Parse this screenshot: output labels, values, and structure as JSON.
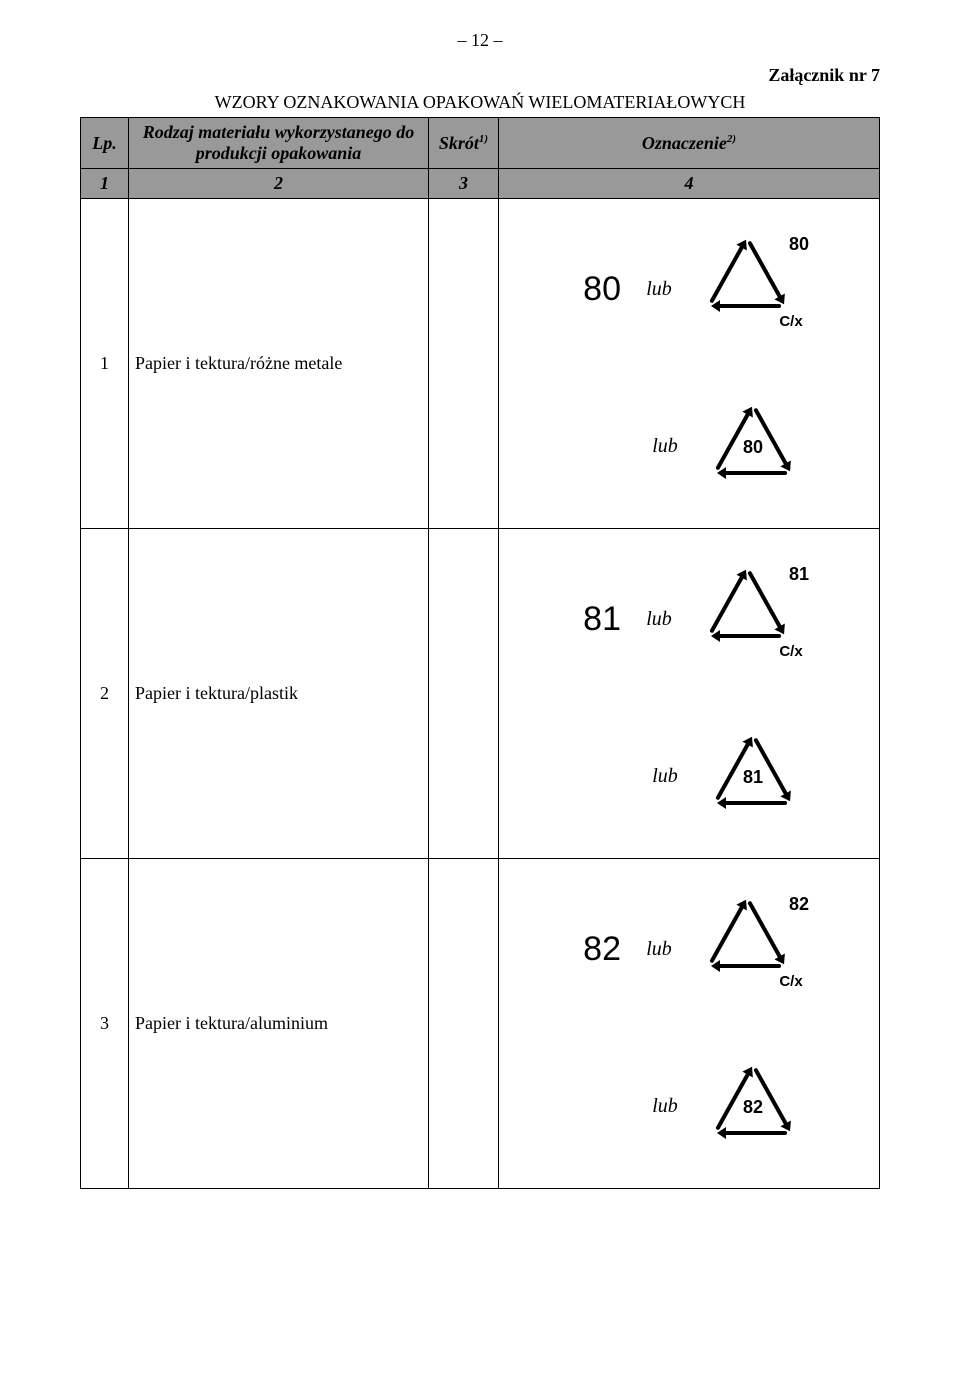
{
  "page_number": "– 12 –",
  "annex_label": "Załącznik nr 7",
  "title": "WZORY OZNAKOWANIA OPAKOWAŃ WIELOMATERIAŁOWYCH",
  "headers": {
    "lp": "Lp.",
    "material": "Rodzaj materiału wykorzystanego do produkcji opakowania",
    "skrot": "Skrót",
    "skrot_sup": "1)",
    "oznaczenie": "Oznaczenie",
    "oznaczenie_sup": "2)"
  },
  "subheaders": {
    "c1": "1",
    "c2": "2",
    "c3": "3",
    "c4": "4"
  },
  "lub_text": "lub",
  "rows": [
    {
      "lp": "1",
      "material": "Papier i tektura/różne metale",
      "skrot": "",
      "code_big": "80",
      "tri1_badge": "80",
      "tri1_code": "C/x",
      "tri2_badge": "80"
    },
    {
      "lp": "2",
      "material": "Papier i tektura/plastik",
      "skrot": "",
      "code_big": "81",
      "tri1_badge": "81",
      "tri1_code": "C/x",
      "tri2_badge": "81"
    },
    {
      "lp": "3",
      "material": "Papier i tektura/aluminium",
      "skrot": "",
      "code_big": "82",
      "tri1_badge": "82",
      "tri1_code": "C/x",
      "tri2_badge": "82"
    }
  ],
  "style": {
    "background_color": "#ffffff",
    "header_bg": "#999999",
    "text_color": "#000000",
    "border_color": "#000000",
    "triangle": {
      "stroke": "#000000",
      "stroke_width": 4,
      "arrow_fill": "#000000",
      "badge_fontsize": 18,
      "code_fontsize": 15,
      "size": 100,
      "badge_position": "outside-top-right",
      "code_position": "outside-right"
    },
    "big_number_fontsize": 34,
    "lub_fontsize": 20,
    "font_family": "Times New Roman"
  }
}
